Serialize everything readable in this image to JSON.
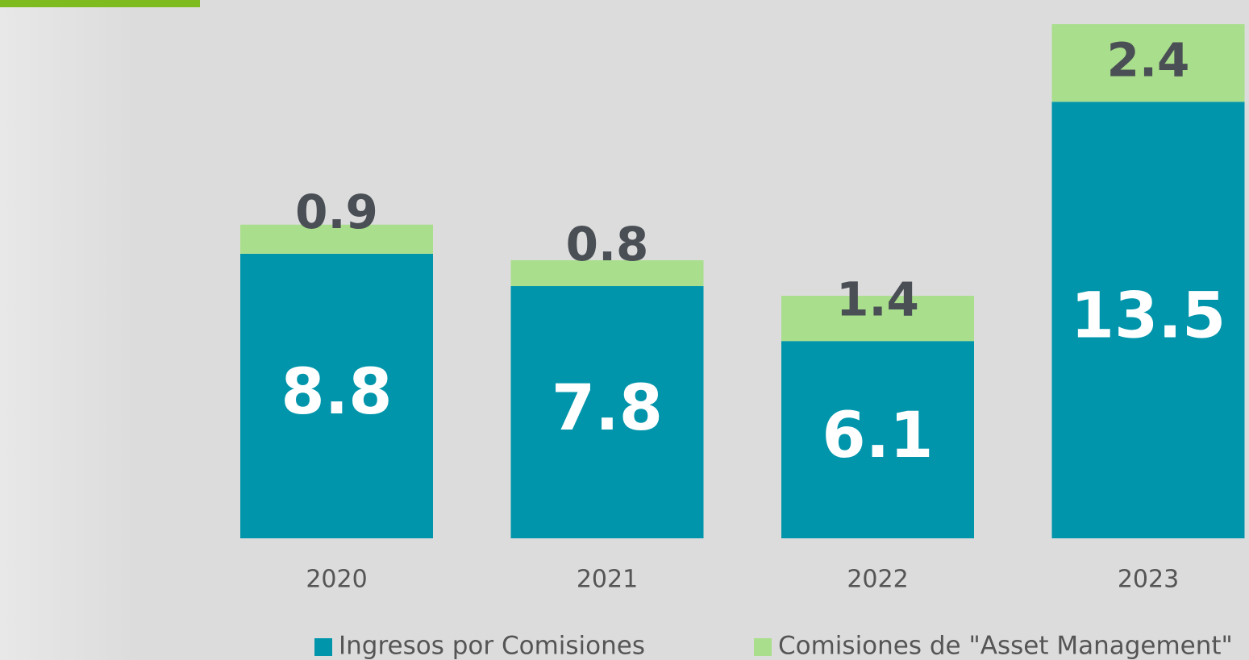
{
  "chart_data": {
    "type": "stacked-bar",
    "categories": [
      "2020",
      "2021",
      "2022",
      "2023"
    ],
    "series": [
      {
        "name": "Ingresos por Comisiones",
        "color": "#0095ab",
        "values": [
          8.8,
          7.8,
          6.1,
          13.5
        ]
      },
      {
        "name": "Comisiones de \"Asset Management\"",
        "color": "#a9de8c",
        "values": [
          0.9,
          0.8,
          1.4,
          2.4
        ]
      }
    ]
  }
}
